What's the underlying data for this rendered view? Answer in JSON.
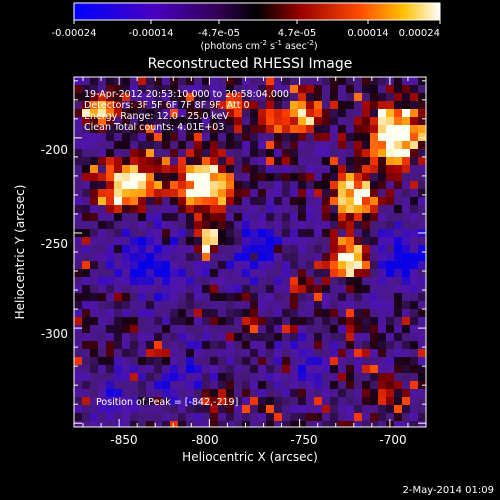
{
  "colorbar": {
    "tick_labels": [
      "-0.00024",
      "-0.00014",
      "-4.7e-05",
      "4.7e-05",
      "0.00014",
      "0.00024"
    ],
    "unit": "(photons cm",
    "unit_exp1": "-2",
    "unit_mid": " s",
    "unit_exp2": "-1",
    "unit_end": " asec",
    "unit_exp3": "-2",
    "unit_close": ")",
    "range": [
      -0.00024,
      0.00024
    ],
    "colormap": "blue-purple-black-red-orange-yellow-white"
  },
  "title": "Reconstructed RHESSI Image",
  "annotations": {
    "time_range": "19-Apr-2012 20:53:10.000 to 20:58:04.000",
    "detectors": "Detectors: 3F 5F 6F 7F 8F 9F, Att 0",
    "energy": "Energy Range: 12.0 - 25.0 keV",
    "clean": "Clean     Total counts: 4.01E+03",
    "peak": "Position of Peak = [-842,-219]"
  },
  "axes": {
    "xlabel": "Heliocentric X (arcsec)",
    "ylabel": "Heliocentric Y (arcsec)",
    "x_ticks": [
      "-850",
      "-800",
      "-750",
      "-700"
    ],
    "x_tick_values": [
      -850,
      -800,
      -750,
      -700
    ],
    "y_ticks": [
      "-200",
      "-250",
      "-300"
    ],
    "y_tick_values": [
      -200,
      -250,
      -300
    ],
    "xlim": [
      -875,
      -680
    ],
    "ylim": [
      -352,
      -168
    ]
  },
  "peak_position": [
    -842,
    -219
  ],
  "footer_date": "2-May-2014 01:09",
  "colors": {
    "background": "#000000",
    "foreground": "#ffffff",
    "map_base": "#4a1a7a"
  }
}
